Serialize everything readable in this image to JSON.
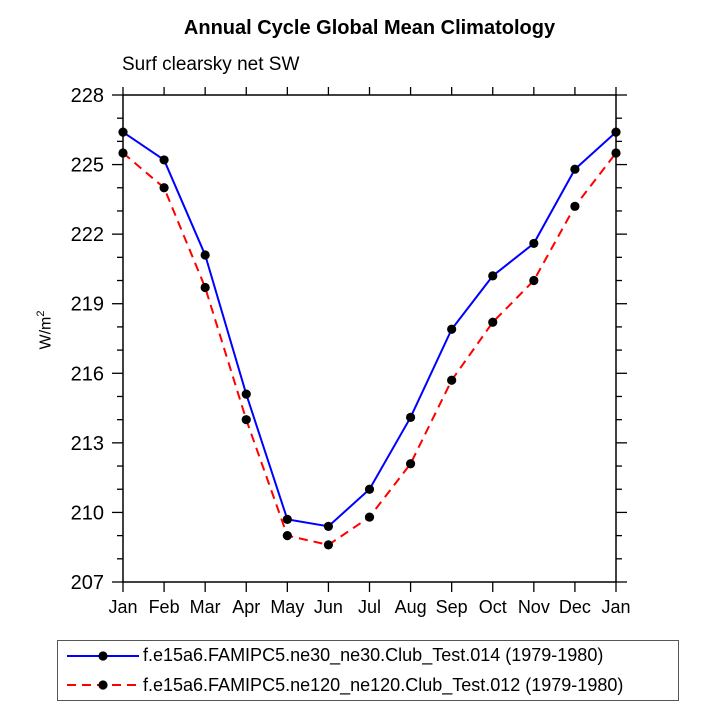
{
  "page": {
    "background": "#ffffff"
  },
  "chart": {
    "title": "Annual Cycle Global Mean Climatology",
    "subtitle": "Surf clearsky net SW",
    "ylabel_base": "W/m",
    "ylabel_sup": "2"
  },
  "chart_data": {
    "type": "line",
    "title": "Annual Cycle Global Mean Climatology",
    "subtitle": "Surf clearsky net SW",
    "xlabel": "",
    "ylabel": "W/m^2",
    "categories": [
      "Jan",
      "Feb",
      "Mar",
      "Apr",
      "May",
      "Jun",
      "Jul",
      "Aug",
      "Sep",
      "Oct",
      "Nov",
      "Dec",
      "Jan"
    ],
    "ylim": [
      207,
      228
    ],
    "ytick_major_step": 3,
    "ytick_minor_step": 1,
    "ytick_labels": [
      207,
      210,
      213,
      216,
      219,
      222,
      225,
      228
    ],
    "grid": false,
    "legend_position": "bottom",
    "axis_color": "#000000",
    "series": [
      {
        "name": "f.e15a6.FAMIPC5.ne30_ne30.Club_Test.014 (1979-1980)",
        "color": "#0000ff",
        "line_style": "solid",
        "marker": "circle",
        "marker_color": "#000000",
        "values": [
          226.4,
          225.2,
          221.1,
          215.1,
          209.7,
          209.4,
          211.0,
          214.1,
          217.9,
          220.2,
          221.6,
          224.8,
          226.4
        ]
      },
      {
        "name": "f.e15a6.FAMIPC5.ne120_ne120.Club_Test.012 (1979-1980)",
        "color": "#ff0000",
        "line_style": "dashed",
        "marker": "circle",
        "marker_color": "#000000",
        "values": [
          225.5,
          224.0,
          219.7,
          214.0,
          209.0,
          208.6,
          209.8,
          212.1,
          215.7,
          218.2,
          220.0,
          223.2,
          225.5
        ]
      }
    ]
  }
}
